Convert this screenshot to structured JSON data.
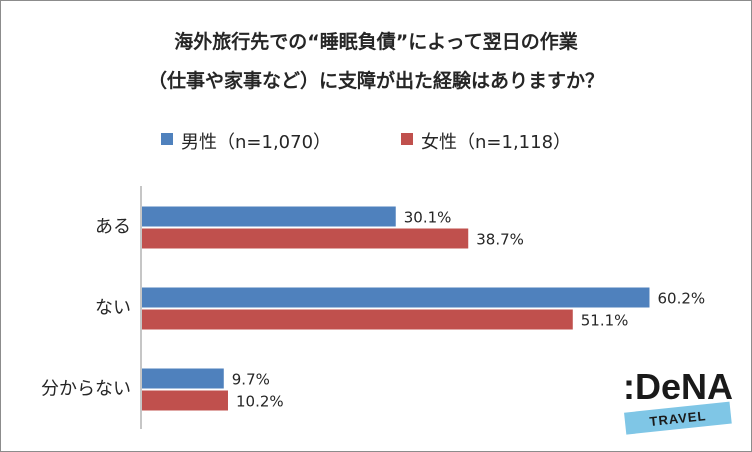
{
  "chart_data": {
    "type": "bar",
    "orientation": "horizontal",
    "title": "海外旅行先での“睡眠負債”によって翌日の作業",
    "subtitle": "（仕事や家事など）に支障が出た経験はありますか？",
    "categories": [
      "ある",
      "ない",
      "分からない"
    ],
    "series": [
      {
        "name": "男性（n=1,070）",
        "color": "#4F81BD",
        "values": [
          30.1,
          60.2,
          9.7
        ],
        "labels": [
          "30.1%",
          "60.2%",
          "9.7%"
        ]
      },
      {
        "name": "女性（n=1,118）",
        "color": "#C0504D",
        "values": [
          38.7,
          51.1,
          10.2
        ],
        "labels": [
          "38.7%",
          "51.1%",
          "10.2%"
        ]
      }
    ],
    "xlim": [
      0,
      65
    ],
    "xlabel": "",
    "ylabel": "",
    "grid": false,
    "legend": "top"
  },
  "logo": {
    "brand": ":DeNA",
    "sub": "TRAVEL",
    "band_color": "#7FC6E6"
  }
}
